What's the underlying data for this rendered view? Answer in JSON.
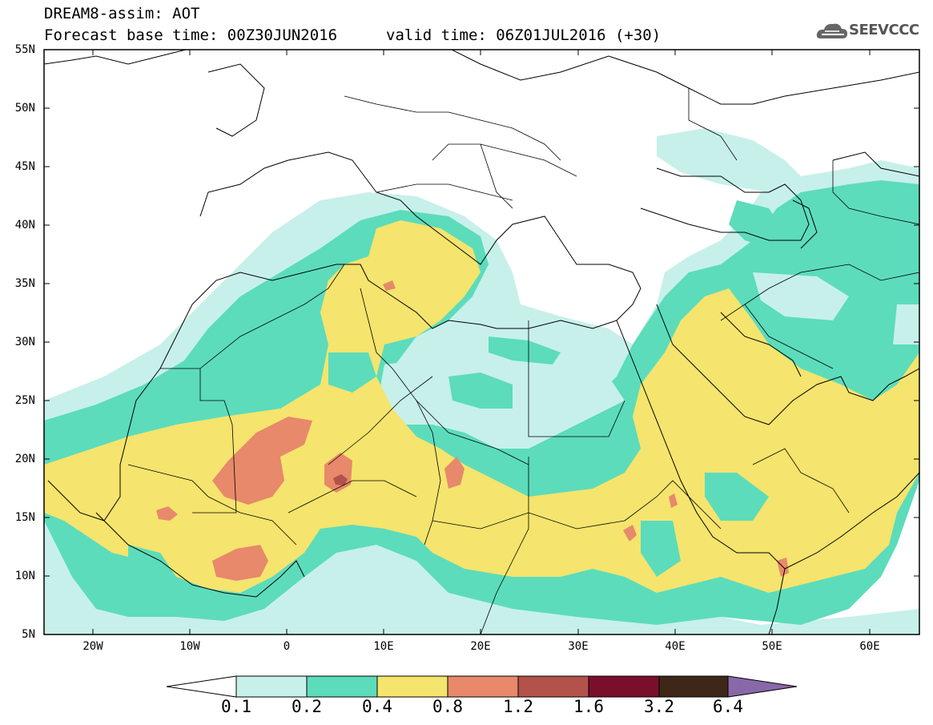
{
  "header": {
    "model_title": "DREAM8-assim: AOT",
    "base_time": "Forecast base time: 00Z30JUN2016",
    "valid_time": "valid time: 06Z01JUL2016 (+30)"
  },
  "logo": {
    "text": "SEEVCCC",
    "icon": "cloud-logo-icon"
  },
  "axes": {
    "lat_labels": [
      "55N",
      "50N",
      "45N",
      "40N",
      "35N",
      "30N",
      "25N",
      "20N",
      "15N",
      "10N",
      "5N"
    ],
    "lon_labels": [
      "20W",
      "10W",
      "0",
      "10E",
      "20E",
      "30E",
      "40E",
      "50E",
      "60E"
    ]
  },
  "legend": {
    "levels": [
      "0.1",
      "0.2",
      "0.4",
      "0.8",
      "1.2",
      "1.6",
      "3.2",
      "6.4"
    ],
    "colors": [
      "#c7f0ea",
      "#5cdcbb",
      "#f5e46d",
      "#e7896a",
      "#b3524a",
      "#7a0f2c",
      "#3e2718",
      "#8868a8"
    ]
  },
  "colors": {
    "border": "#000000",
    "background": "#ffffff"
  }
}
